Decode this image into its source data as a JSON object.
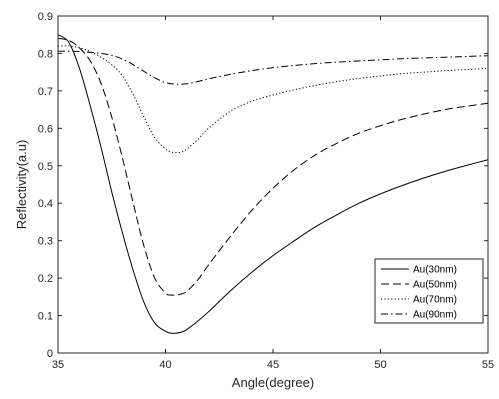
{
  "chart_data": {
    "type": "line",
    "title": "",
    "xlabel": "Angle(degree)",
    "ylabel": "Reflectivity(a.u)",
    "xlim": [
      35,
      55
    ],
    "ylim": [
      0,
      0.9
    ],
    "xticks": [
      35,
      40,
      45,
      50,
      55
    ],
    "yticks": [
      0,
      0.1,
      0.2,
      0.3,
      0.4,
      0.5,
      0.6,
      0.7,
      0.8,
      0.9
    ],
    "xtick_labels": [
      "35",
      "40",
      "45",
      "50",
      "55"
    ],
    "ytick_labels": [
      "0",
      "0.1",
      "0.2",
      "0.3",
      "0.4",
      "0.5",
      "0.6",
      "0.7",
      "0.8",
      "0.9"
    ],
    "grid": false,
    "legend_position": "lower-right",
    "series": [
      {
        "name": "Au(30nm)",
        "line_style": "solid",
        "color": "#000000",
        "x": [
          35,
          35.5,
          36,
          36.5,
          37,
          37.5,
          38,
          38.5,
          39,
          39.5,
          40,
          40.25,
          40.5,
          40.75,
          41,
          41.5,
          42,
          43,
          44,
          45,
          46,
          47,
          48,
          49,
          50,
          51,
          52,
          53,
          54,
          55
        ],
        "y": [
          0.85,
          0.83,
          0.76,
          0.66,
          0.55,
          0.43,
          0.32,
          0.22,
          0.135,
          0.08,
          0.058,
          0.053,
          0.053,
          0.056,
          0.063,
          0.085,
          0.11,
          0.165,
          0.215,
          0.26,
          0.3,
          0.338,
          0.37,
          0.4,
          0.425,
          0.447,
          0.467,
          0.485,
          0.501,
          0.516
        ]
      },
      {
        "name": "Au(50nm)",
        "line_style": "dashed",
        "color": "#000000",
        "x": [
          35,
          35.5,
          36,
          36.5,
          37,
          37.5,
          38,
          38.5,
          39,
          39.5,
          40,
          40.25,
          40.5,
          40.75,
          41,
          41.5,
          42,
          43,
          44,
          45,
          46,
          47,
          48,
          49,
          50,
          51,
          52,
          53,
          54,
          55
        ],
        "y": [
          0.84,
          0.835,
          0.815,
          0.78,
          0.72,
          0.63,
          0.52,
          0.4,
          0.285,
          0.2,
          0.16,
          0.155,
          0.155,
          0.158,
          0.165,
          0.195,
          0.235,
          0.31,
          0.38,
          0.44,
          0.49,
          0.53,
          0.561,
          0.587,
          0.607,
          0.624,
          0.638,
          0.65,
          0.659,
          0.667
        ]
      },
      {
        "name": "Au(70nm)",
        "line_style": "dotted",
        "color": "#000000",
        "x": [
          35,
          35.5,
          36,
          36.5,
          37,
          37.5,
          38,
          38.5,
          39,
          39.5,
          40,
          40.25,
          40.5,
          40.75,
          41,
          41.5,
          42,
          43,
          44,
          45,
          46,
          47,
          48,
          49,
          50,
          51,
          52,
          53,
          54,
          55
        ],
        "y": [
          0.82,
          0.82,
          0.815,
          0.805,
          0.79,
          0.77,
          0.74,
          0.69,
          0.63,
          0.575,
          0.545,
          0.537,
          0.535,
          0.537,
          0.545,
          0.57,
          0.6,
          0.645,
          0.672,
          0.689,
          0.703,
          0.715,
          0.725,
          0.733,
          0.74,
          0.746,
          0.75,
          0.754,
          0.757,
          0.76
        ]
      },
      {
        "name": "Au(90nm)",
        "line_style": "dash-dot",
        "color": "#000000",
        "x": [
          35,
          35.5,
          36,
          36.5,
          37,
          37.5,
          38,
          38.5,
          39,
          39.5,
          40,
          40.5,
          41,
          41.5,
          42,
          43,
          44,
          45,
          46,
          47,
          48,
          49,
          50,
          51,
          52,
          53,
          54,
          55
        ],
        "y": [
          0.806,
          0.806,
          0.805,
          0.803,
          0.8,
          0.795,
          0.785,
          0.77,
          0.752,
          0.735,
          0.722,
          0.718,
          0.719,
          0.725,
          0.732,
          0.744,
          0.754,
          0.762,
          0.768,
          0.773,
          0.777,
          0.78,
          0.783,
          0.786,
          0.788,
          0.79,
          0.792,
          0.794
        ]
      }
    ]
  }
}
